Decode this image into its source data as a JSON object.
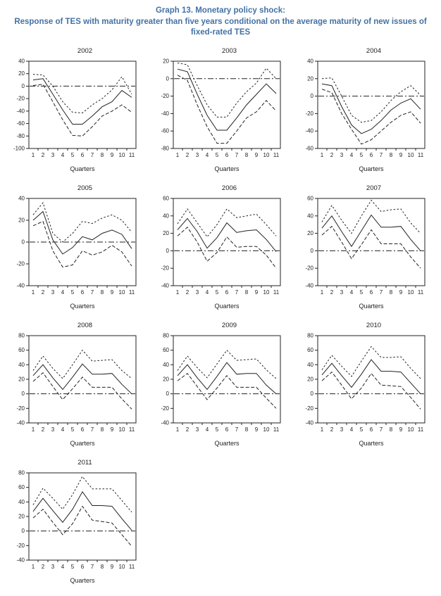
{
  "figure": {
    "title_line1": "Graph 13. Monetary policy shock:",
    "title_line2": "Response of TES with maturity greater than five years conditional on the average maturity of new issues of fixed-rated TES"
  },
  "colors": {
    "title": "#4472a4",
    "line": "#222222"
  },
  "chart_data": [
    {
      "type": "line",
      "title": "2002",
      "xlabel": "Quarters",
      "ylabel": "",
      "x": [
        1,
        2,
        3,
        4,
        5,
        6,
        7,
        8,
        9,
        10,
        11
      ],
      "ylim": [
        -100,
        40
      ],
      "yticks": [
        40,
        20,
        0,
        -20,
        -40,
        -60,
        -80,
        -100
      ],
      "zero_line": true,
      "series": [
        {
          "name": "upper-band",
          "style": "dotted",
          "values": [
            19,
            18,
            0,
            -25,
            -42,
            -43,
            -30,
            -20,
            -6,
            15,
            -13
          ]
        },
        {
          "name": "response",
          "style": "solid",
          "values": [
            10,
            12,
            -13,
            -38,
            -61,
            -61,
            -48,
            -33,
            -25,
            -7,
            -18
          ]
        },
        {
          "name": "lower-band",
          "style": "dashed",
          "values": [
            1,
            3,
            -25,
            -54,
            -79,
            -80,
            -65,
            -48,
            -40,
            -30,
            -42
          ]
        }
      ]
    },
    {
      "type": "line",
      "title": "2003",
      "xlabel": "Quarters",
      "ylabel": "",
      "x": [
        1,
        2,
        3,
        4,
        5,
        6,
        7,
        8,
        9,
        10,
        11
      ],
      "ylim": [
        -80,
        20
      ],
      "yticks": [
        20,
        0,
        -20,
        -40,
        -60,
        -80
      ],
      "zero_line": true,
      "series": [
        {
          "name": "upper-band",
          "style": "dotted",
          "values": [
            18,
            16,
            -8,
            -30,
            -44,
            -44,
            -28,
            -15,
            -5,
            12,
            0
          ]
        },
        {
          "name": "response",
          "style": "solid",
          "values": [
            11,
            8,
            -18,
            -42,
            -59,
            -59,
            -45,
            -30,
            -18,
            -6,
            -17
          ]
        },
        {
          "name": "lower-band",
          "style": "dashed",
          "values": [
            4,
            -2,
            -30,
            -55,
            -74,
            -74,
            -60,
            -45,
            -38,
            -25,
            -37
          ]
        }
      ]
    },
    {
      "type": "line",
      "title": "2004",
      "xlabel": "Quarters",
      "ylabel": "",
      "x": [
        1,
        2,
        3,
        4,
        5,
        6,
        7,
        8,
        9,
        10,
        11
      ],
      "ylim": [
        -60,
        40
      ],
      "yticks": [
        40,
        20,
        0,
        -20,
        -40,
        -60
      ],
      "zero_line": true,
      "series": [
        {
          "name": "upper-band",
          "style": "dotted",
          "values": [
            20,
            21,
            0,
            -22,
            -30,
            -28,
            -18,
            -5,
            5,
            12,
            1
          ]
        },
        {
          "name": "response",
          "style": "solid",
          "values": [
            14,
            12,
            -12,
            -33,
            -43,
            -38,
            -28,
            -16,
            -8,
            -3,
            -15
          ]
        },
        {
          "name": "lower-band",
          "style": "dashed",
          "values": [
            8,
            4,
            -20,
            -38,
            -55,
            -50,
            -40,
            -30,
            -22,
            -18,
            -31
          ]
        }
      ]
    },
    {
      "type": "line",
      "title": "2005",
      "xlabel": "Quarters",
      "ylabel": "",
      "x": [
        1,
        2,
        3,
        4,
        5,
        6,
        7,
        8,
        9,
        10,
        11
      ],
      "ylim": [
        -40,
        40
      ],
      "yticks": [
        40,
        20,
        0,
        -20,
        -40
      ],
      "zero_line": true,
      "series": [
        {
          "name": "upper-band",
          "style": "dotted",
          "values": [
            25,
            36,
            8,
            0,
            8,
            19,
            17,
            22,
            25,
            20,
            9
          ]
        },
        {
          "name": "response",
          "style": "solid",
          "values": [
            20,
            28,
            2,
            -11,
            -5,
            5,
            2,
            8,
            11,
            7,
            -6
          ]
        },
        {
          "name": "lower-band",
          "style": "dashed",
          "values": [
            15,
            19,
            -8,
            -23,
            -21,
            -8,
            -12,
            -9,
            -3,
            -9,
            -22
          ]
        }
      ]
    },
    {
      "type": "line",
      "title": "2006",
      "xlabel": "Quarters",
      "ylabel": "",
      "x": [
        1,
        2,
        3,
        4,
        5,
        6,
        7,
        8,
        9,
        10,
        11
      ],
      "ylim": [
        -40,
        60
      ],
      "yticks": [
        60,
        40,
        20,
        0,
        -20,
        -40
      ],
      "zero_line": true,
      "series": [
        {
          "name": "upper-band",
          "style": "dotted",
          "values": [
            31,
            48,
            32,
            16,
            30,
            48,
            38,
            40,
            42,
            30,
            17
          ]
        },
        {
          "name": "response",
          "style": "solid",
          "values": [
            24,
            37,
            22,
            3,
            15,
            32,
            21,
            23,
            24,
            13,
            -1
          ]
        },
        {
          "name": "lower-band",
          "style": "dashed",
          "values": [
            17,
            27,
            10,
            -12,
            -2,
            16,
            4,
            5,
            5,
            -5,
            -20
          ]
        }
      ]
    },
    {
      "type": "line",
      "title": "2007",
      "xlabel": "Quarters",
      "ylabel": "",
      "x": [
        1,
        2,
        3,
        4,
        5,
        6,
        7,
        8,
        9,
        10,
        11
      ],
      "ylim": [
        -40,
        60
      ],
      "yticks": [
        60,
        40,
        20,
        0,
        -20,
        -40
      ],
      "zero_line": true,
      "series": [
        {
          "name": "upper-band",
          "style": "dotted",
          "values": [
            33,
            52,
            35,
            20,
            40,
            58,
            45,
            47,
            48,
            32,
            20
          ]
        },
        {
          "name": "response",
          "style": "solid",
          "values": [
            26,
            40,
            22,
            5,
            23,
            41,
            27,
            27,
            28,
            13,
            0
          ]
        },
        {
          "name": "lower-band",
          "style": "dashed",
          "values": [
            18,
            28,
            10,
            -9,
            7,
            24,
            8,
            8,
            8,
            -7,
            -20
          ]
        }
      ]
    },
    {
      "type": "line",
      "title": "2008",
      "xlabel": "Quarters",
      "ylabel": "",
      "x": [
        1,
        2,
        3,
        4,
        5,
        6,
        7,
        8,
        9,
        10,
        11
      ],
      "ylim": [
        -40,
        80
      ],
      "yticks": [
        80,
        60,
        40,
        20,
        0,
        -20,
        -40
      ],
      "zero_line": true,
      "series": [
        {
          "name": "upper-band",
          "style": "dotted",
          "values": [
            32,
            52,
            35,
            21,
            40,
            60,
            45,
            46,
            47,
            32,
            21
          ]
        },
        {
          "name": "response",
          "style": "solid",
          "values": [
            25,
            40,
            22,
            6,
            23,
            41,
            27,
            27,
            28,
            13,
            0
          ]
        },
        {
          "name": "lower-band",
          "style": "dashed",
          "values": [
            17,
            29,
            10,
            -8,
            7,
            23,
            9,
            9,
            9,
            -7,
            -21
          ]
        }
      ]
    },
    {
      "type": "line",
      "title": "2009",
      "xlabel": "Quarters",
      "ylabel": "",
      "x": [
        1,
        2,
        3,
        4,
        5,
        6,
        7,
        8,
        9,
        10,
        11
      ],
      "ylim": [
        -40,
        80
      ],
      "yticks": [
        80,
        60,
        40,
        20,
        0,
        -20,
        -40
      ],
      "zero_line": true,
      "series": [
        {
          "name": "upper-band",
          "style": "dotted",
          "values": [
            32,
            52,
            36,
            22,
            41,
            60,
            46,
            47,
            48,
            33,
            21
          ]
        },
        {
          "name": "response",
          "style": "solid",
          "values": [
            25,
            40,
            22,
            6,
            24,
            43,
            27,
            28,
            28,
            12,
            0
          ]
        },
        {
          "name": "lower-band",
          "style": "dashed",
          "values": [
            18,
            28,
            10,
            -8,
            8,
            25,
            9,
            9,
            9,
            -6,
            -20
          ]
        }
      ]
    },
    {
      "type": "line",
      "title": "2010",
      "xlabel": "Quarters",
      "ylabel": "",
      "x": [
        1,
        2,
        3,
        4,
        5,
        6,
        7,
        8,
        9,
        10,
        11
      ],
      "ylim": [
        -40,
        80
      ],
      "yticks": [
        80,
        60,
        40,
        20,
        0,
        -20,
        -40
      ],
      "zero_line": true,
      "series": [
        {
          "name": "upper-band",
          "style": "dotted",
          "values": [
            33,
            53,
            38,
            24,
            45,
            65,
            50,
            50,
            51,
            35,
            21
          ]
        },
        {
          "name": "response",
          "style": "solid",
          "values": [
            26,
            42,
            25,
            9,
            27,
            47,
            31,
            31,
            30,
            15,
            0
          ]
        },
        {
          "name": "lower-band",
          "style": "dashed",
          "values": [
            18,
            30,
            12,
            -7,
            8,
            28,
            12,
            11,
            10,
            -5,
            -21
          ]
        }
      ]
    },
    {
      "type": "line",
      "title": "2011",
      "xlabel": "Quarters",
      "ylabel": "",
      "x": [
        1,
        2,
        3,
        4,
        5,
        6,
        7,
        8,
        9,
        10,
        11
      ],
      "ylim": [
        -40,
        80
      ],
      "yticks": [
        80,
        60,
        40,
        20,
        0,
        -20,
        -40
      ],
      "zero_line": true,
      "series": [
        {
          "name": "upper-band",
          "style": "dotted",
          "values": [
            36,
            59,
            45,
            30,
            50,
            75,
            58,
            58,
            58,
            42,
            26
          ]
        },
        {
          "name": "response",
          "style": "solid",
          "values": [
            27,
            45,
            28,
            12,
            30,
            54,
            35,
            35,
            34,
            17,
            1
          ]
        },
        {
          "name": "lower-band",
          "style": "dashed",
          "values": [
            18,
            30,
            12,
            -5,
            10,
            34,
            15,
            13,
            11,
            -5,
            -21
          ]
        }
      ]
    }
  ]
}
